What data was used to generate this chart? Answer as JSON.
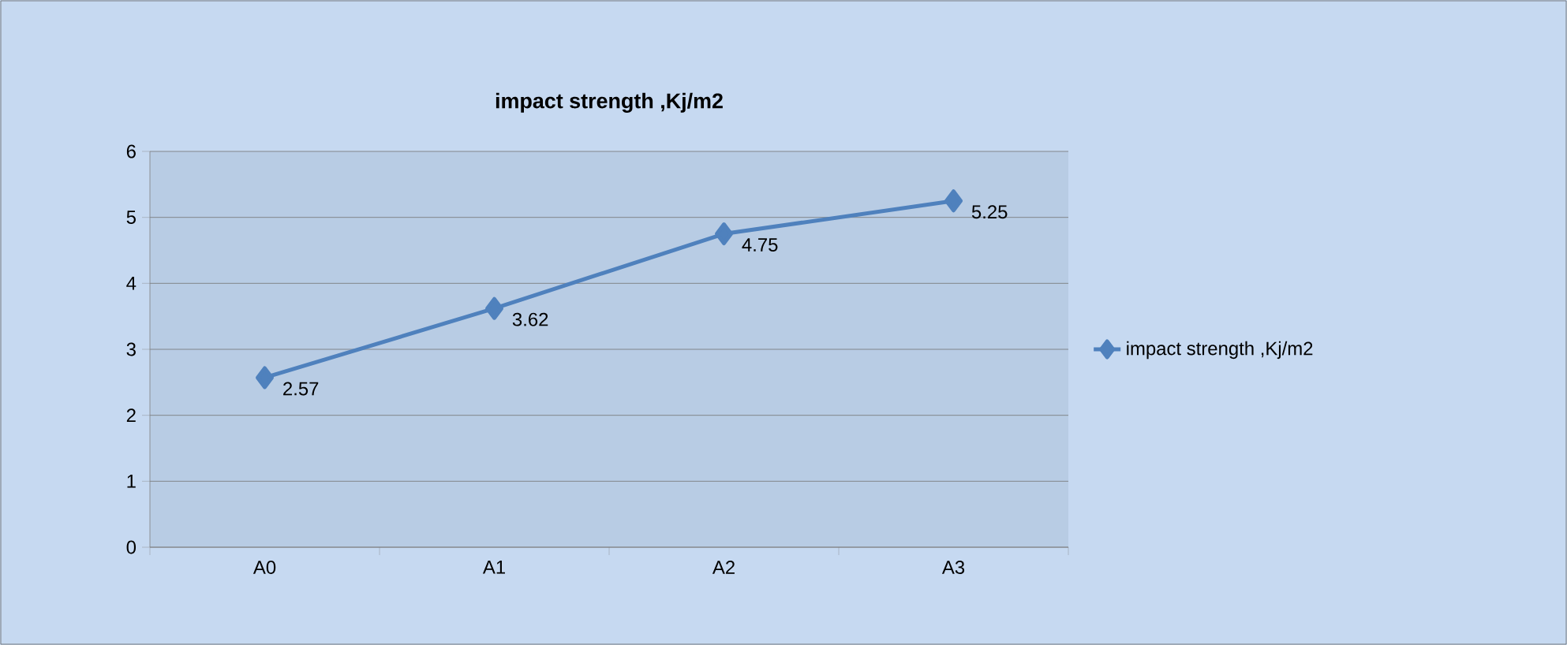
{
  "chart_data": {
    "type": "line",
    "title": "impact strength ,Kj/m2",
    "categories": [
      "A0",
      "A1",
      "A2",
      "A3"
    ],
    "series": [
      {
        "name": "impact strength ,Kj/m2",
        "color": "#4f81bd",
        "values": [
          2.57,
          3.62,
          4.75,
          5.25
        ]
      }
    ],
    "ylim": [
      0,
      6
    ],
    "yticks": [
      0,
      1,
      2,
      3,
      4,
      5,
      6
    ],
    "grid": "y",
    "legend": "right",
    "marker": "diamond",
    "data_labels": true
  }
}
